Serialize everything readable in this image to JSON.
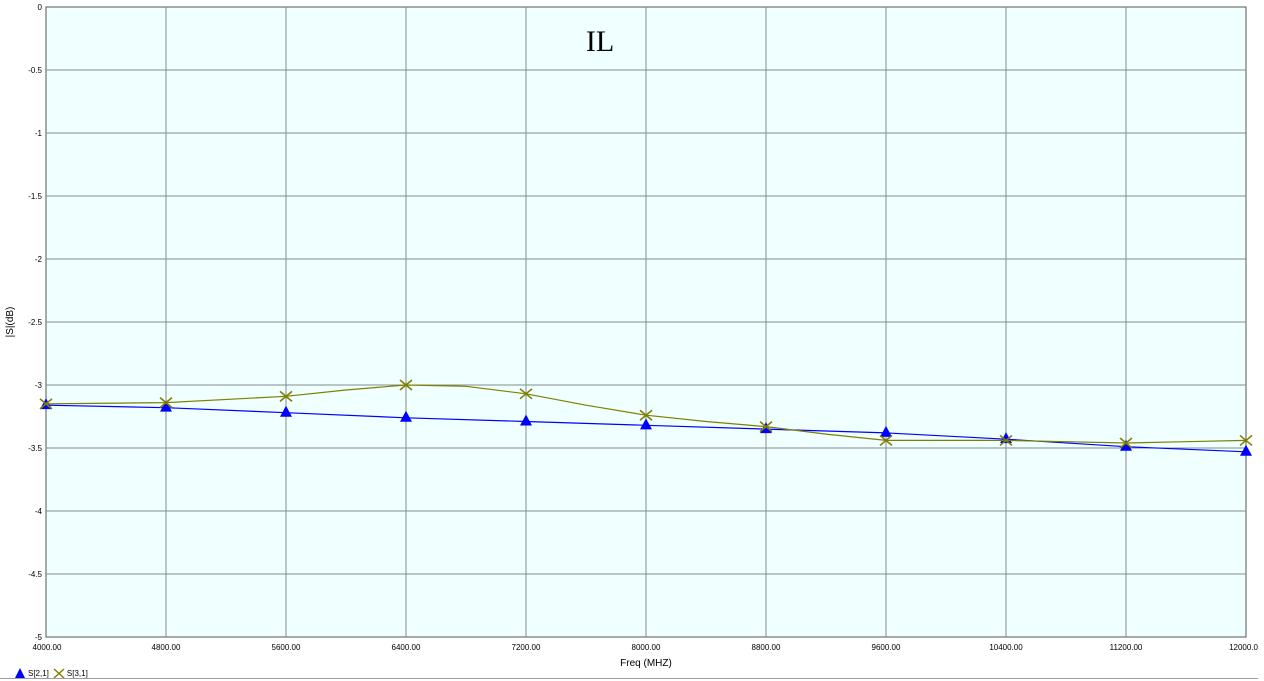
{
  "chart_data": {
    "type": "line",
    "title": "IL",
    "xlabel": "Freq (MHZ)",
    "ylabel": "|S|(dB)",
    "xlim": [
      4000,
      12000
    ],
    "ylim": [
      -5,
      0
    ],
    "x_ticks": [
      "4000.00",
      "4800.00",
      "5600.00",
      "6400.00",
      "7200.00",
      "8000.00",
      "8800.00",
      "9600.00",
      "10400.00",
      "11200.00",
      "12000.0"
    ],
    "y_ticks": [
      "0",
      "-0.5",
      "-1",
      "-1.5",
      "-2",
      "-2.5",
      "-3",
      "-3.5",
      "-4",
      "-4.5",
      "-5"
    ],
    "grid": true,
    "background": "#f0ffff",
    "legend_position": "bottom-left",
    "series": [
      {
        "name": "S[2,1]",
        "color": "#0000ff",
        "marker": "triangle",
        "x": [
          4000,
          4800,
          5600,
          6400,
          7200,
          8000,
          8800,
          9600,
          10400,
          11200,
          12000
        ],
        "values": [
          -3.16,
          -3.18,
          -3.22,
          -3.26,
          -3.29,
          -3.32,
          -3.35,
          -3.38,
          -3.43,
          -3.49,
          -3.53
        ]
      },
      {
        "name": "S[3,1]",
        "color": "#808000",
        "marker": "x",
        "x": [
          4000,
          4800,
          5600,
          6000,
          6400,
          6800,
          7200,
          7600,
          8000,
          8400,
          8800,
          9200,
          9600,
          10000,
          10400,
          10800,
          11200,
          11600,
          12000
        ],
        "values": [
          -3.15,
          -3.14,
          -3.09,
          -3.04,
          -3.0,
          -3.01,
          -3.07,
          -3.16,
          -3.24,
          -3.29,
          -3.33,
          -3.39,
          -3.44,
          -3.44,
          -3.44,
          -3.45,
          -3.46,
          -3.45,
          -3.44
        ]
      }
    ]
  }
}
